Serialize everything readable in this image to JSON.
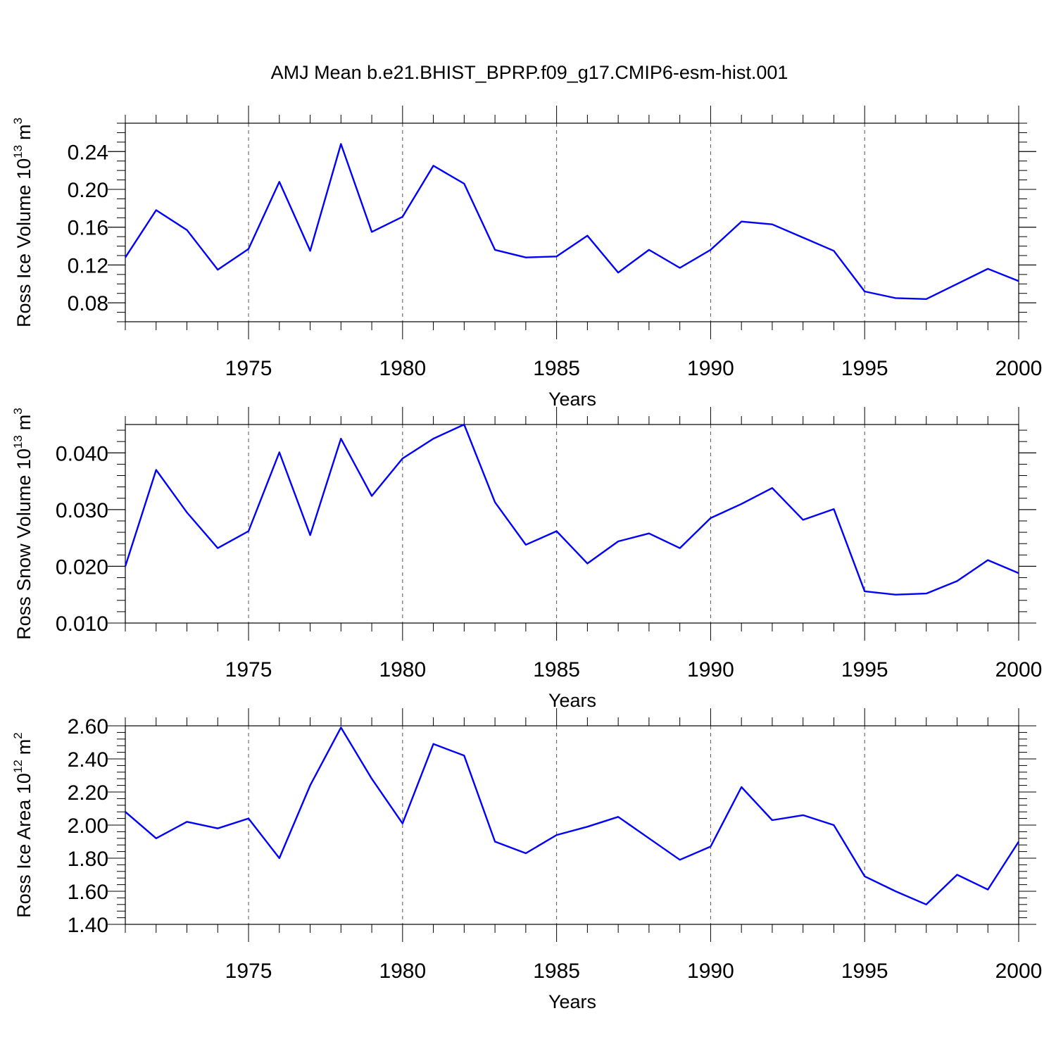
{
  "title": "AMJ Mean b.e21.BHIST_BPRP.f09_g17.CMIP6-esm-hist.001",
  "line_color": "#0000ff",
  "chart_data": [
    {
      "type": "line",
      "ylabel_main": "Ross Ice Volume 10",
      "ylabel_sup": "13",
      "ylabel_unit": "m",
      "ylabel_unit_sup": "3",
      "xlabel": "Years",
      "xlim": [
        1971,
        2000
      ],
      "ylim": [
        0.06,
        0.27
      ],
      "xticks": [
        1975,
        1980,
        1985,
        1990,
        1995,
        2000
      ],
      "yticks": [
        "0.08",
        "0.12",
        "0.16",
        "0.20",
        "0.24"
      ],
      "yminor_step": 0.01,
      "grid": "vertical dashed at major x ticks",
      "x": [
        1971,
        1972,
        1973,
        1974,
        1975,
        1976,
        1977,
        1978,
        1979,
        1980,
        1981,
        1982,
        1983,
        1984,
        1985,
        1986,
        1987,
        1988,
        1989,
        1990,
        1991,
        1992,
        1993,
        1994,
        1995,
        1996,
        1997,
        1998,
        1999,
        2000
      ],
      "values": [
        0.128,
        0.178,
        0.157,
        0.115,
        0.137,
        0.208,
        0.135,
        0.248,
        0.155,
        0.171,
        0.225,
        0.206,
        0.136,
        0.128,
        0.129,
        0.151,
        0.112,
        0.136,
        0.117,
        0.136,
        0.166,
        0.163,
        0.149,
        0.135,
        0.092,
        0.085,
        0.084,
        0.1,
        0.116,
        0.103
      ]
    },
    {
      "type": "line",
      "ylabel_main": "Ross Snow Volume 10",
      "ylabel_sup": "13",
      "ylabel_unit": "m",
      "ylabel_unit_sup": "3",
      "xlabel": "Years",
      "xlim": [
        1971,
        2000
      ],
      "ylim": [
        0.01,
        0.045
      ],
      "xticks": [
        1975,
        1980,
        1985,
        1990,
        1995,
        2000
      ],
      "yticks": [
        "0.010",
        "0.020",
        "0.030",
        "0.040"
      ],
      "yminor_step": 0.002,
      "grid": "vertical dashed at major x ticks",
      "x": [
        1971,
        1972,
        1973,
        1974,
        1975,
        1976,
        1977,
        1978,
        1979,
        1980,
        1981,
        1982,
        1983,
        1984,
        1985,
        1986,
        1987,
        1988,
        1989,
        1990,
        1991,
        1992,
        1993,
        1994,
        1995,
        1996,
        1997,
        1998,
        1999,
        2000
      ],
      "values": [
        0.02,
        0.037,
        0.0295,
        0.0232,
        0.0262,
        0.0401,
        0.0255,
        0.0425,
        0.0324,
        0.039,
        0.0425,
        0.045,
        0.0313,
        0.0238,
        0.0262,
        0.0205,
        0.0244,
        0.0258,
        0.0232,
        0.0285,
        0.031,
        0.0338,
        0.0282,
        0.0301,
        0.0156,
        0.015,
        0.0152,
        0.0174,
        0.0211,
        0.0188
      ]
    },
    {
      "type": "line",
      "ylabel_main": "Ross Ice Area 10",
      "ylabel_sup": "12",
      "ylabel_unit": "m",
      "ylabel_unit_sup": "2",
      "xlabel": "Years",
      "xlim": [
        1971,
        2000
      ],
      "ylim": [
        1.4,
        2.6
      ],
      "xticks": [
        1975,
        1980,
        1985,
        1990,
        1995,
        2000
      ],
      "yticks": [
        "1.40",
        "1.60",
        "1.80",
        "2.00",
        "2.20",
        "2.40",
        "2.60"
      ],
      "yminor_step": 0.04,
      "grid": "vertical dashed at major x ticks",
      "x": [
        1971,
        1972,
        1973,
        1974,
        1975,
        1976,
        1977,
        1978,
        1979,
        1980,
        1981,
        1982,
        1983,
        1984,
        1985,
        1986,
        1987,
        1988,
        1989,
        1990,
        1991,
        1992,
        1993,
        1994,
        1995,
        1996,
        1997,
        1998,
        1999,
        2000
      ],
      "values": [
        2.08,
        1.92,
        2.02,
        1.98,
        2.04,
        1.8,
        2.24,
        2.59,
        2.28,
        2.01,
        2.49,
        2.42,
        1.9,
        1.83,
        1.94,
        1.99,
        2.05,
        1.92,
        1.79,
        1.87,
        2.23,
        2.03,
        2.06,
        2.0,
        1.69,
        1.6,
        1.52,
        1.7,
        1.61,
        1.9
      ]
    }
  ]
}
